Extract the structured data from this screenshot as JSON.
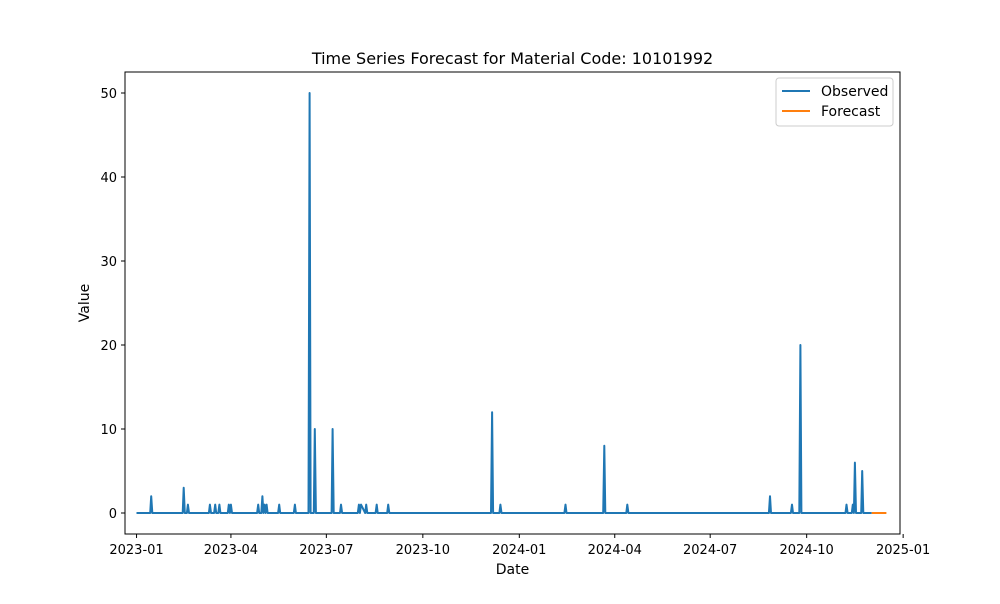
{
  "chart_data": {
    "type": "line",
    "title": "Time Series Forecast for Material Code: 10101992",
    "xlabel": "Date",
    "ylabel": "Value",
    "xlim": [
      "2022-12-21",
      "2024-12-29"
    ],
    "ylim": [
      -2.5,
      52.5
    ],
    "x_ticks": [
      "2023-01",
      "2023-04",
      "2023-07",
      "2023-10",
      "2024-01",
      "2024-04",
      "2024-07",
      "2024-10",
      "2025-01"
    ],
    "y_ticks": [
      0,
      10,
      20,
      30,
      40,
      50
    ],
    "legend": {
      "position": "upper right"
    },
    "grid": false,
    "series": [
      {
        "name": "Observed",
        "color": "#1f77b4",
        "x": [
          "2023-01-01",
          "2023-01-14",
          "2023-01-15",
          "2023-01-16",
          "2023-02-14",
          "2023-02-15",
          "2023-02-16",
          "2023-02-18",
          "2023-02-19",
          "2023-02-20",
          "2023-03-11",
          "2023-03-12",
          "2023-03-13",
          "2023-03-16",
          "2023-03-17",
          "2023-03-18",
          "2023-03-20",
          "2023-03-21",
          "2023-03-22",
          "2023-03-29",
          "2023-03-30",
          "2023-03-31",
          "2023-04-01",
          "2023-04-02",
          "2023-04-26",
          "2023-04-27",
          "2023-04-28",
          "2023-04-30",
          "2023-05-01",
          "2023-05-02",
          "2023-05-03",
          "2023-05-04",
          "2023-05-05",
          "2023-05-06",
          "2023-05-16",
          "2023-05-17",
          "2023-05-18",
          "2023-05-31",
          "2023-06-01",
          "2023-06-02",
          "2023-06-14",
          "2023-06-15",
          "2023-06-16",
          "2023-06-19",
          "2023-06-20",
          "2023-06-21",
          "2023-07-06",
          "2023-07-07",
          "2023-07-08",
          "2023-07-14",
          "2023-07-15",
          "2023-07-16",
          "2023-07-31",
          "2023-08-01",
          "2023-08-02",
          "2023-08-03",
          "2023-08-07",
          "2023-08-08",
          "2023-08-09",
          "2023-08-17",
          "2023-08-18",
          "2023-08-19",
          "2023-08-28",
          "2023-08-29",
          "2023-08-30",
          "2023-12-05",
          "2023-12-06",
          "2023-12-07",
          "2023-12-13",
          "2023-12-14",
          "2023-12-15",
          "2024-02-13",
          "2024-02-14",
          "2024-02-15",
          "2024-03-21",
          "2024-03-22",
          "2024-03-23",
          "2024-04-12",
          "2024-04-13",
          "2024-04-14",
          "2024-08-26",
          "2024-08-27",
          "2024-08-28",
          "2024-09-16",
          "2024-09-17",
          "2024-09-18",
          "2024-09-24",
          "2024-09-25",
          "2024-09-26",
          "2024-11-07",
          "2024-11-08",
          "2024-11-09",
          "2024-11-13",
          "2024-11-14",
          "2024-11-15",
          "2024-11-16",
          "2024-11-17",
          "2024-11-22",
          "2024-11-23",
          "2024-11-24",
          "2024-12-02"
        ],
        "y": [
          0,
          0,
          2,
          0,
          0,
          3,
          0,
          0,
          1,
          0,
          0,
          1,
          0,
          0,
          1,
          0,
          0,
          1,
          0,
          0,
          1,
          0,
          1,
          0,
          0,
          1,
          0,
          0,
          2,
          0,
          1,
          0,
          1,
          0,
          0,
          1,
          0,
          0,
          1,
          0,
          0,
          50,
          0,
          0,
          10,
          0,
          0,
          10,
          0,
          0,
          1,
          0,
          0,
          1,
          0,
          1,
          0,
          1,
          0,
          0,
          1,
          0,
          0,
          1,
          0,
          0,
          12,
          0,
          0,
          1,
          0,
          0,
          1,
          0,
          0,
          8,
          0,
          0,
          1,
          0,
          0,
          2,
          0,
          0,
          1,
          0,
          0,
          20,
          0,
          0,
          1,
          0,
          0,
          1,
          0,
          6,
          0,
          0,
          5,
          0,
          0
        ]
      },
      {
        "name": "Forecast",
        "color": "#ff7f0e",
        "x": [
          "2024-12-02",
          "2024-12-16"
        ],
        "y": [
          0,
          0
        ]
      }
    ]
  }
}
